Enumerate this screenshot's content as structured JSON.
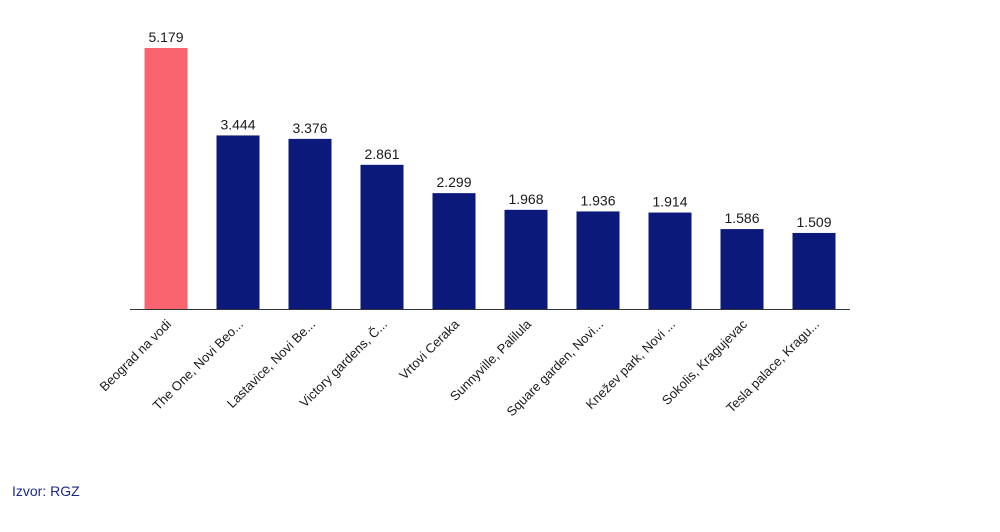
{
  "chart_data": {
    "type": "bar",
    "categories": [
      "Beograd na vodi",
      "The One, Novi Beo...",
      "Lastavice, Novi Be...",
      "Victory gardens, Č...",
      "Vrtovi Ceraka",
      "Sunnyville, Palilula",
      "Square garden, Novi...",
      "Knežev park, Novi ...",
      "Sokolis, Kragujevac",
      "Tesla palace, Kragu..."
    ],
    "values": [
      5179,
      3444,
      3376,
      2861,
      2299,
      1968,
      1936,
      1914,
      1586,
      1509
    ],
    "value_labels": [
      "5.179",
      "3.444",
      "3.376",
      "2.861",
      "2.299",
      "1.968",
      "1.936",
      "1.914",
      "1.586",
      "1.509"
    ],
    "ylim": [
      0,
      5179
    ],
    "grid": false,
    "colors": {
      "highlight": "#f9646e",
      "default": "#0b1a7a",
      "axis": "#333333"
    },
    "highlight_index": 0
  },
  "source": "Izvor: RGZ"
}
